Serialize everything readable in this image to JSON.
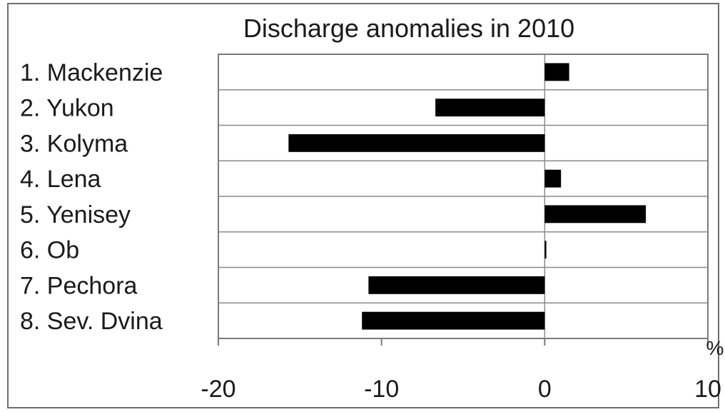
{
  "chart_data": {
    "type": "bar",
    "orientation": "horizontal",
    "title": "Discharge anomalies in 2010",
    "categories": [
      "1. Mackenzie",
      "2. Yukon",
      "3. Kolyma",
      "4. Lena",
      "5. Yenisey",
      "6. Ob",
      "7. Pechora",
      "8. Sev. Dvina"
    ],
    "values": [
      1.5,
      -6.7,
      -15.7,
      1.0,
      6.2,
      0.1,
      -10.8,
      -11.2
    ],
    "xlim": [
      -20,
      10
    ],
    "xticks": [
      "-20",
      "-10",
      "0",
      "10"
    ],
    "xunit": "%",
    "xlabel": "",
    "ylabel": "",
    "bar_color": "#000000",
    "grid": "horizontal",
    "legend": "none"
  }
}
